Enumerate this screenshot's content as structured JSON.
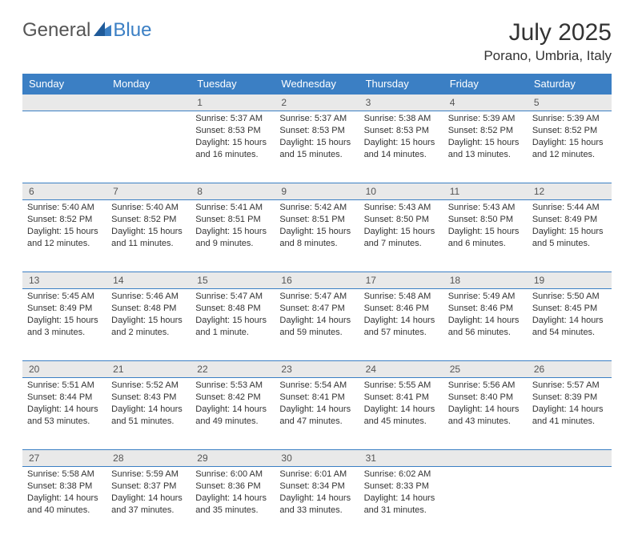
{
  "logo": {
    "text1": "General",
    "text2": "Blue"
  },
  "title": "July 2025",
  "location": "Porano, Umbria, Italy",
  "colors": {
    "header_bg": "#3b7fc4",
    "header_text": "#ffffff",
    "daynum_bg": "#e9e9e9",
    "border": "#3b7fc4",
    "body_text": "#333333"
  },
  "day_headers": [
    "Sunday",
    "Monday",
    "Tuesday",
    "Wednesday",
    "Thursday",
    "Friday",
    "Saturday"
  ],
  "weeks": [
    {
      "nums": [
        "",
        "",
        "1",
        "2",
        "3",
        "4",
        "5"
      ],
      "cells": [
        null,
        null,
        {
          "sunrise": "Sunrise: 5:37 AM",
          "sunset": "Sunset: 8:53 PM",
          "daylight": "Daylight: 15 hours and 16 minutes."
        },
        {
          "sunrise": "Sunrise: 5:37 AM",
          "sunset": "Sunset: 8:53 PM",
          "daylight": "Daylight: 15 hours and 15 minutes."
        },
        {
          "sunrise": "Sunrise: 5:38 AM",
          "sunset": "Sunset: 8:53 PM",
          "daylight": "Daylight: 15 hours and 14 minutes."
        },
        {
          "sunrise": "Sunrise: 5:39 AM",
          "sunset": "Sunset: 8:52 PM",
          "daylight": "Daylight: 15 hours and 13 minutes."
        },
        {
          "sunrise": "Sunrise: 5:39 AM",
          "sunset": "Sunset: 8:52 PM",
          "daylight": "Daylight: 15 hours and 12 minutes."
        }
      ]
    },
    {
      "nums": [
        "6",
        "7",
        "8",
        "9",
        "10",
        "11",
        "12"
      ],
      "cells": [
        {
          "sunrise": "Sunrise: 5:40 AM",
          "sunset": "Sunset: 8:52 PM",
          "daylight": "Daylight: 15 hours and 12 minutes."
        },
        {
          "sunrise": "Sunrise: 5:40 AM",
          "sunset": "Sunset: 8:52 PM",
          "daylight": "Daylight: 15 hours and 11 minutes."
        },
        {
          "sunrise": "Sunrise: 5:41 AM",
          "sunset": "Sunset: 8:51 PM",
          "daylight": "Daylight: 15 hours and 9 minutes."
        },
        {
          "sunrise": "Sunrise: 5:42 AM",
          "sunset": "Sunset: 8:51 PM",
          "daylight": "Daylight: 15 hours and 8 minutes."
        },
        {
          "sunrise": "Sunrise: 5:43 AM",
          "sunset": "Sunset: 8:50 PM",
          "daylight": "Daylight: 15 hours and 7 minutes."
        },
        {
          "sunrise": "Sunrise: 5:43 AM",
          "sunset": "Sunset: 8:50 PM",
          "daylight": "Daylight: 15 hours and 6 minutes."
        },
        {
          "sunrise": "Sunrise: 5:44 AM",
          "sunset": "Sunset: 8:49 PM",
          "daylight": "Daylight: 15 hours and 5 minutes."
        }
      ]
    },
    {
      "nums": [
        "13",
        "14",
        "15",
        "16",
        "17",
        "18",
        "19"
      ],
      "cells": [
        {
          "sunrise": "Sunrise: 5:45 AM",
          "sunset": "Sunset: 8:49 PM",
          "daylight": "Daylight: 15 hours and 3 minutes."
        },
        {
          "sunrise": "Sunrise: 5:46 AM",
          "sunset": "Sunset: 8:48 PM",
          "daylight": "Daylight: 15 hours and 2 minutes."
        },
        {
          "sunrise": "Sunrise: 5:47 AM",
          "sunset": "Sunset: 8:48 PM",
          "daylight": "Daylight: 15 hours and 1 minute."
        },
        {
          "sunrise": "Sunrise: 5:47 AM",
          "sunset": "Sunset: 8:47 PM",
          "daylight": "Daylight: 14 hours and 59 minutes."
        },
        {
          "sunrise": "Sunrise: 5:48 AM",
          "sunset": "Sunset: 8:46 PM",
          "daylight": "Daylight: 14 hours and 57 minutes."
        },
        {
          "sunrise": "Sunrise: 5:49 AM",
          "sunset": "Sunset: 8:46 PM",
          "daylight": "Daylight: 14 hours and 56 minutes."
        },
        {
          "sunrise": "Sunrise: 5:50 AM",
          "sunset": "Sunset: 8:45 PM",
          "daylight": "Daylight: 14 hours and 54 minutes."
        }
      ]
    },
    {
      "nums": [
        "20",
        "21",
        "22",
        "23",
        "24",
        "25",
        "26"
      ],
      "cells": [
        {
          "sunrise": "Sunrise: 5:51 AM",
          "sunset": "Sunset: 8:44 PM",
          "daylight": "Daylight: 14 hours and 53 minutes."
        },
        {
          "sunrise": "Sunrise: 5:52 AM",
          "sunset": "Sunset: 8:43 PM",
          "daylight": "Daylight: 14 hours and 51 minutes."
        },
        {
          "sunrise": "Sunrise: 5:53 AM",
          "sunset": "Sunset: 8:42 PM",
          "daylight": "Daylight: 14 hours and 49 minutes."
        },
        {
          "sunrise": "Sunrise: 5:54 AM",
          "sunset": "Sunset: 8:41 PM",
          "daylight": "Daylight: 14 hours and 47 minutes."
        },
        {
          "sunrise": "Sunrise: 5:55 AM",
          "sunset": "Sunset: 8:41 PM",
          "daylight": "Daylight: 14 hours and 45 minutes."
        },
        {
          "sunrise": "Sunrise: 5:56 AM",
          "sunset": "Sunset: 8:40 PM",
          "daylight": "Daylight: 14 hours and 43 minutes."
        },
        {
          "sunrise": "Sunrise: 5:57 AM",
          "sunset": "Sunset: 8:39 PM",
          "daylight": "Daylight: 14 hours and 41 minutes."
        }
      ]
    },
    {
      "nums": [
        "27",
        "28",
        "29",
        "30",
        "31",
        "",
        ""
      ],
      "cells": [
        {
          "sunrise": "Sunrise: 5:58 AM",
          "sunset": "Sunset: 8:38 PM",
          "daylight": "Daylight: 14 hours and 40 minutes."
        },
        {
          "sunrise": "Sunrise: 5:59 AM",
          "sunset": "Sunset: 8:37 PM",
          "daylight": "Daylight: 14 hours and 37 minutes."
        },
        {
          "sunrise": "Sunrise: 6:00 AM",
          "sunset": "Sunset: 8:36 PM",
          "daylight": "Daylight: 14 hours and 35 minutes."
        },
        {
          "sunrise": "Sunrise: 6:01 AM",
          "sunset": "Sunset: 8:34 PM",
          "daylight": "Daylight: 14 hours and 33 minutes."
        },
        {
          "sunrise": "Sunrise: 6:02 AM",
          "sunset": "Sunset: 8:33 PM",
          "daylight": "Daylight: 14 hours and 31 minutes."
        },
        null,
        null
      ]
    }
  ]
}
